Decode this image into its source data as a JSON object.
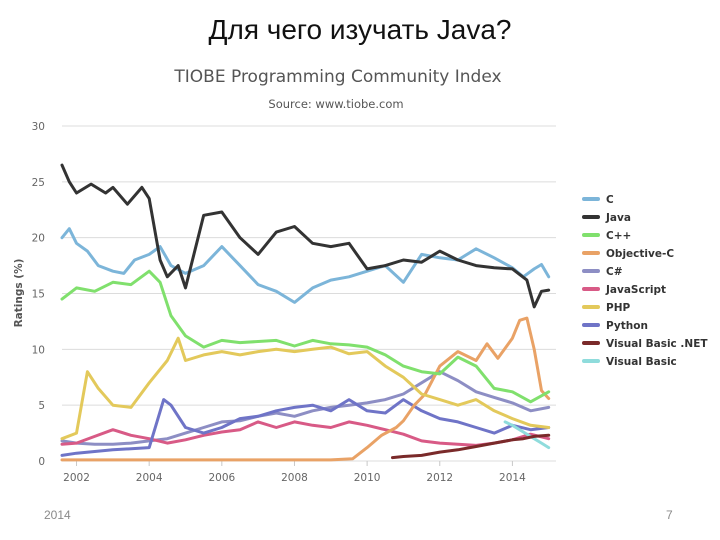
{
  "slide": {
    "title": "Для чего изучать Java?",
    "year": "2014",
    "page": "7"
  },
  "chart_data": {
    "type": "line",
    "title": "TIOBE Programming Community Index",
    "subtitle": "Source: www.tiobe.com",
    "ylabel": "Ratings (%)",
    "xlabel": "",
    "ylim": [
      0,
      30
    ],
    "xlim": [
      2001.6,
      2015.2
    ],
    "yticks": [
      "0",
      "5",
      "10",
      "15",
      "20",
      "25",
      "30"
    ],
    "xticks": [
      "2002",
      "2004",
      "2006",
      "2008",
      "2010",
      "2012",
      "2014"
    ],
    "grid": true,
    "legend_position": "right",
    "series": [
      {
        "name": "C",
        "color": "#7cb5d9",
        "x": [
          2001.6,
          2001.8,
          2002,
          2002.3,
          2002.6,
          2003,
          2003.3,
          2003.6,
          2004,
          2004.3,
          2004.6,
          2005,
          2005.5,
          2006,
          2006.5,
          2007,
          2007.5,
          2008,
          2008.5,
          2009,
          2009.5,
          2010,
          2010.5,
          2011,
          2011.5,
          2012,
          2012.5,
          2013,
          2013.5,
          2014,
          2014.3,
          2014.6,
          2014.8,
          2015
        ],
        "y": [
          20,
          20.8,
          19.5,
          18.8,
          17.5,
          17,
          16.8,
          18,
          18.5,
          19.2,
          17.5,
          16.8,
          17.5,
          19.2,
          17.5,
          15.8,
          15.2,
          14.2,
          15.5,
          16.2,
          16.5,
          17,
          17.5,
          16,
          18.5,
          18.2,
          18,
          19,
          18.2,
          17.3,
          16.5,
          17.2,
          17.6,
          16.5
        ]
      },
      {
        "name": "Java",
        "color": "#333333",
        "x": [
          2001.6,
          2001.8,
          2002,
          2002.4,
          2002.8,
          2003,
          2003.4,
          2003.8,
          2004,
          2004.3,
          2004.5,
          2004.8,
          2005,
          2005.5,
          2006,
          2006.5,
          2007,
          2007.5,
          2008,
          2008.5,
          2009,
          2009.5,
          2010,
          2010.5,
          2011,
          2011.5,
          2012,
          2012.5,
          2013,
          2013.5,
          2014,
          2014.4,
          2014.6,
          2014.8,
          2015
        ],
        "y": [
          26.5,
          25,
          24,
          24.8,
          24,
          24.5,
          23,
          24.5,
          23.5,
          18,
          16.5,
          17.5,
          15.5,
          22,
          22.3,
          20,
          18.5,
          20.5,
          21,
          19.5,
          19.2,
          19.5,
          17.2,
          17.5,
          18,
          17.8,
          18.8,
          18,
          17.5,
          17.3,
          17.2,
          16.2,
          13.8,
          15.2,
          15.3
        ]
      },
      {
        "name": "C++",
        "color": "#80e06d",
        "x": [
          2001.6,
          2002,
          2002.5,
          2003,
          2003.5,
          2004,
          2004.3,
          2004.6,
          2005,
          2005.5,
          2006,
          2006.5,
          2007,
          2007.5,
          2008,
          2008.5,
          2009,
          2009.5,
          2010,
          2010.5,
          2011,
          2011.5,
          2012,
          2012.5,
          2013,
          2013.5,
          2014,
          2014.5,
          2015
        ],
        "y": [
          14.5,
          15.5,
          15.2,
          16,
          15.8,
          17,
          16,
          13,
          11.2,
          10.2,
          10.8,
          10.6,
          10.7,
          10.8,
          10.3,
          10.8,
          10.5,
          10.4,
          10.2,
          9.5,
          8.5,
          8,
          7.8,
          9.3,
          8.5,
          6.5,
          6.2,
          5.3,
          6.2
        ]
      },
      {
        "name": "Objective-C",
        "color": "#e9a266",
        "x": [
          2001.6,
          2003,
          2004,
          2005,
          2006,
          2007,
          2008,
          2009,
          2009.6,
          2010,
          2010.4,
          2010.8,
          2011,
          2011.3,
          2011.6,
          2012,
          2012.5,
          2013,
          2013.3,
          2013.6,
          2014,
          2014.2,
          2014.4,
          2014.6,
          2014.8,
          2015
        ],
        "y": [
          0.1,
          0.1,
          0.1,
          0.1,
          0.1,
          0.1,
          0.1,
          0.1,
          0.2,
          1.2,
          2.3,
          3,
          3.6,
          5,
          6,
          8.5,
          9.8,
          9,
          10.5,
          9.2,
          11,
          12.6,
          12.8,
          10,
          6.3,
          5.6
        ]
      },
      {
        "name": "C#",
        "color": "#8d8ec4",
        "x": [
          2001.6,
          2002,
          2002.5,
          2003,
          2003.5,
          2004,
          2004.5,
          2005,
          2005.5,
          2006,
          2006.5,
          2007,
          2007.5,
          2008,
          2008.5,
          2009,
          2009.5,
          2010,
          2010.5,
          2011,
          2011.5,
          2012,
          2012.5,
          2013,
          2013.5,
          2014,
          2014.5,
          2015
        ],
        "y": [
          1.8,
          1.6,
          1.5,
          1.5,
          1.6,
          1.8,
          2,
          2.5,
          3,
          3.5,
          3.6,
          4,
          4.3,
          4,
          4.5,
          4.8,
          5,
          5.2,
          5.5,
          6,
          7,
          8,
          7.2,
          6.2,
          5.7,
          5.2,
          4.5,
          4.8
        ]
      },
      {
        "name": "JavaScript",
        "color": "#d85a86",
        "x": [
          2001.6,
          2002,
          2002.5,
          2003,
          2003.5,
          2004,
          2004.5,
          2005,
          2005.5,
          2006,
          2006.5,
          2007,
          2007.5,
          2008,
          2008.5,
          2009,
          2009.5,
          2010,
          2010.5,
          2011,
          2011.5,
          2012,
          2012.5,
          2013,
          2013.5,
          2014,
          2014.5,
          2015
        ],
        "y": [
          1.5,
          1.6,
          2.2,
          2.8,
          2.3,
          2,
          1.6,
          1.9,
          2.3,
          2.6,
          2.8,
          3.5,
          3,
          3.5,
          3.2,
          3,
          3.5,
          3.2,
          2.8,
          2.4,
          1.8,
          1.6,
          1.5,
          1.4,
          1.6,
          1.9,
          2.4,
          2
        ]
      },
      {
        "name": "PHP",
        "color": "#e3c95b",
        "x": [
          2001.6,
          2002,
          2002.3,
          2002.6,
          2003,
          2003.5,
          2004,
          2004.5,
          2004.8,
          2005,
          2005.5,
          2006,
          2006.5,
          2007,
          2007.5,
          2008,
          2008.5,
          2009,
          2009.5,
          2010,
          2010.5,
          2011,
          2011.5,
          2012,
          2012.5,
          2013,
          2013.5,
          2014,
          2014.5,
          2015
        ],
        "y": [
          2,
          2.5,
          8,
          6.5,
          5,
          4.8,
          7,
          9,
          11,
          9,
          9.5,
          9.8,
          9.5,
          9.8,
          10,
          9.8,
          10,
          10.2,
          9.6,
          9.8,
          8.5,
          7.5,
          6,
          5.5,
          5,
          5.5,
          4.5,
          3.8,
          3.2,
          3
        ]
      },
      {
        "name": "Python",
        "color": "#6f74c7",
        "x": [
          2001.6,
          2002,
          2003,
          2004,
          2004.4,
          2004.6,
          2005,
          2005.5,
          2006,
          2006.5,
          2007,
          2007.5,
          2008,
          2008.5,
          2009,
          2009.5,
          2010,
          2010.5,
          2011,
          2011.5,
          2012,
          2012.5,
          2013,
          2013.5,
          2014,
          2014.5,
          2015
        ],
        "y": [
          0.5,
          0.7,
          1,
          1.2,
          5.5,
          5,
          3,
          2.5,
          3,
          3.8,
          4,
          4.5,
          4.8,
          5,
          4.5,
          5.5,
          4.5,
          4.3,
          5.5,
          4.5,
          3.8,
          3.5,
          3,
          2.5,
          3.2,
          2.8,
          3
        ]
      },
      {
        "name": "Visual Basic .NET",
        "color": "#7a2a2a",
        "x": [
          2010.7,
          2011,
          2011.5,
          2012,
          2012.5,
          2013,
          2013.5,
          2014,
          2014.3,
          2014.6,
          2015
        ],
        "y": [
          0.3,
          0.4,
          0.5,
          0.8,
          1,
          1.3,
          1.6,
          1.9,
          2,
          2.2,
          2.3
        ]
      },
      {
        "name": "Visual Basic",
        "color": "#8fdcdc",
        "x": [
          2013.8,
          2014,
          2014.3,
          2014.6,
          2014.8,
          2015
        ],
        "y": [
          3.5,
          3.2,
          2.6,
          2,
          1.6,
          1.2
        ]
      }
    ]
  }
}
